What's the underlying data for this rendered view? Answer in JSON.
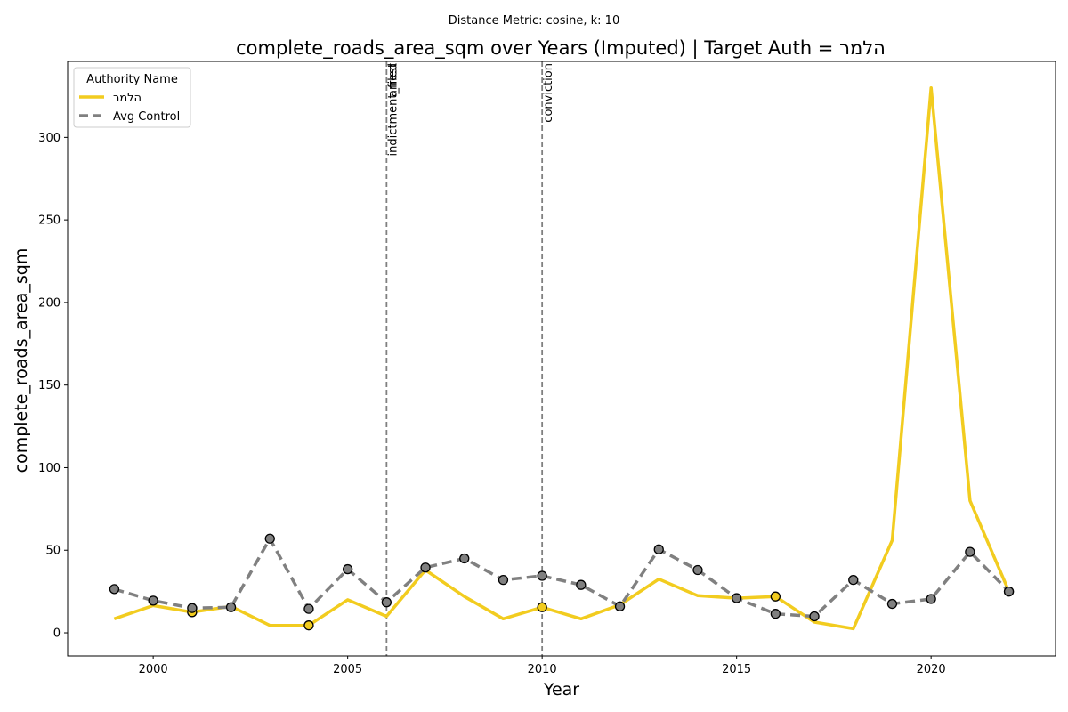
{
  "chart_data": {
    "type": "line",
    "suptitle": "Distance Metric: cosine, k: 10",
    "title": "complete_roads_area_sqm over Years (Imputed) | Target Auth = הלמר",
    "xlabel": "Year",
    "ylabel": "complete_roads_area_sqm",
    "xlim": [
      1997.8,
      2023.2
    ],
    "ylim": [
      -14,
      346
    ],
    "xticks": [
      2000,
      2005,
      2010,
      2015,
      2020
    ],
    "yticks": [
      0,
      50,
      100,
      150,
      200,
      250,
      300
    ],
    "legend": {
      "title": "Authority Name",
      "position": "upper-left"
    },
    "events": [
      {
        "x": 2006,
        "label": "indictment_filed"
      },
      {
        "x": 2006,
        "label": "arrest"
      },
      {
        "x": 2010,
        "label": "conviction"
      }
    ],
    "series": [
      {
        "name": "הלמר",
        "color": "#f2cc1f",
        "style": "solid",
        "x": [
          1999,
          2000,
          2001,
          2002,
          2003,
          2004,
          2005,
          2006,
          2007,
          2008,
          2009,
          2010,
          2011,
          2012,
          2013,
          2014,
          2015,
          2016,
          2017,
          2018,
          2019,
          2020,
          2021,
          2022
        ],
        "values": [
          8.5,
          16.5,
          12.5,
          16,
          4.5,
          4.5,
          20,
          10,
          38,
          22,
          8.5,
          15.5,
          8.5,
          17,
          32.5,
          22.5,
          21,
          22,
          6.5,
          2.5,
          56,
          330,
          80,
          25
        ],
        "markers": [
          2001,
          2004,
          2010,
          2016,
          2022
        ]
      },
      {
        "name": "Avg Control",
        "color": "#808080",
        "style": "dashed",
        "x": [
          1999,
          2000,
          2001,
          2002,
          2003,
          2004,
          2005,
          2006,
          2007,
          2008,
          2009,
          2010,
          2011,
          2012,
          2013,
          2014,
          2015,
          2016,
          2017,
          2018,
          2019,
          2020,
          2021,
          2022
        ],
        "values": [
          26.5,
          19.5,
          15,
          15.5,
          57,
          14.5,
          38.5,
          18.5,
          39.5,
          45,
          32,
          34.5,
          29,
          16,
          50.5,
          38,
          21,
          11.5,
          10,
          32,
          17.5,
          20.5,
          49,
          25
        ],
        "markers": [
          1999,
          2000,
          2001,
          2002,
          2003,
          2004,
          2005,
          2006,
          2007,
          2008,
          2009,
          2010,
          2011,
          2012,
          2013,
          2014,
          2015,
          2016,
          2017,
          2018,
          2019,
          2020,
          2021,
          2022
        ]
      }
    ]
  }
}
